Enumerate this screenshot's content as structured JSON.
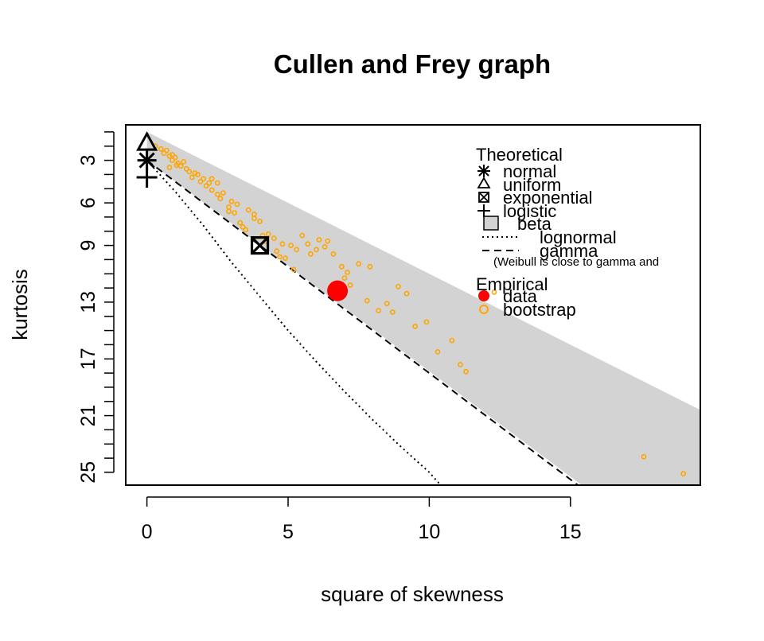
{
  "chart_data": {
    "type": "scatter",
    "title": "Cullen and Frey graph",
    "xlabel": "square of skewness",
    "ylabel": "kurtosis",
    "xlim": [
      -0.75,
      19.6
    ],
    "ylim": [
      25.9,
      0.5
    ],
    "y_reversed": true,
    "x_ticks": [
      "0",
      "5",
      "10",
      "15"
    ],
    "y_ticks": [
      "3",
      "6",
      "9",
      "13",
      "17",
      "21",
      "25"
    ],
    "legend": {
      "theoretical_title": "Theoretical",
      "empirical_title": "Empirical",
      "items": [
        "normal",
        "uniform",
        "exponential",
        "logistic",
        "beta",
        "lognormal",
        "gamma"
      ],
      "note": "(Weibull is close to gamma and",
      "empirical_items": [
        "data",
        "bootstrap"
      ]
    },
    "theoretical_points": {
      "normal": {
        "x": 0,
        "y": 3
      },
      "uniform": {
        "x": 0,
        "y": 1.8
      },
      "exponential": {
        "x": 4,
        "y": 9
      },
      "logistic": {
        "x": 0,
        "y": 4.2
      }
    },
    "beta_region": [
      [
        0,
        1
      ],
      [
        19.6,
        20.6
      ],
      [
        19.6,
        25.9
      ],
      [
        15.4,
        25.9
      ],
      [
        0,
        3
      ]
    ],
    "gamma_line": [
      [
        0,
        3
      ],
      [
        15.4,
        26.1
      ]
    ],
    "lognormal_line": [
      [
        0,
        3
      ],
      [
        1,
        5.2
      ],
      [
        2,
        7.6
      ],
      [
        3,
        10.2
      ],
      [
        4,
        12.6
      ],
      [
        5,
        15
      ],
      [
        6,
        17.2
      ],
      [
        7,
        19.3
      ],
      [
        8,
        21.3
      ],
      [
        9,
        23.2
      ],
      [
        10,
        25
      ],
      [
        10.4,
        25.9
      ]
    ],
    "data_point": {
      "x": 6.75,
      "y": 12.2
    },
    "bootstrap": [
      [
        0.3,
        2
      ],
      [
        0.5,
        2.2
      ],
      [
        0.6,
        2.5
      ],
      [
        0.7,
        2.3
      ],
      [
        0.8,
        2.7
      ],
      [
        0.9,
        3
      ],
      [
        1,
        2.8
      ],
      [
        1.1,
        3.2
      ],
      [
        1.2,
        3.4
      ],
      [
        0.8,
        3.5
      ],
      [
        1.3,
        3.1
      ],
      [
        1.4,
        3.6
      ],
      [
        1.5,
        3.8
      ],
      [
        1.6,
        4.2
      ],
      [
        1.8,
        4
      ],
      [
        1.9,
        4.5
      ],
      [
        2,
        4.3
      ],
      [
        2.1,
        4.8
      ],
      [
        0.9,
        2.6
      ],
      [
        1.05,
        3.35
      ],
      [
        1.7,
        3.9
      ],
      [
        2.2,
        4.6
      ],
      [
        2.3,
        5.1
      ],
      [
        2.5,
        5.4
      ],
      [
        2.7,
        5.3
      ],
      [
        3,
        5.9
      ],
      [
        3.2,
        6.1
      ],
      [
        3.6,
        6.5
      ],
      [
        3.8,
        7.1
      ],
      [
        4,
        7.3
      ],
      [
        4.3,
        8.2
      ],
      [
        4.5,
        8.5
      ],
      [
        4.8,
        8.9
      ],
      [
        5.1,
        9
      ],
      [
        5.3,
        9.3
      ],
      [
        2.6,
        5.7
      ],
      [
        2.9,
        6.6
      ],
      [
        3.3,
        7.4
      ],
      [
        3.5,
        7.9
      ],
      [
        4.1,
        8.3
      ],
      [
        2.3,
        4.3
      ],
      [
        2.5,
        4.6
      ],
      [
        2.9,
        6.3
      ],
      [
        3.1,
        6.7
      ],
      [
        3.8,
        6.8
      ],
      [
        3.4,
        7.7
      ],
      [
        4.2,
        8.7
      ],
      [
        4.6,
        9.4
      ],
      [
        4.9,
        9.9
      ],
      [
        5.2,
        10.7
      ],
      [
        5.5,
        8.3
      ],
      [
        5.7,
        8.9
      ],
      [
        6,
        9.3
      ],
      [
        6.1,
        8.6
      ],
      [
        6.4,
        8.7
      ],
      [
        6.6,
        9.6
      ],
      [
        6.9,
        10.5
      ],
      [
        7.1,
        10.9
      ],
      [
        7.2,
        11.8
      ],
      [
        7.5,
        10.3
      ],
      [
        7.9,
        10.5
      ],
      [
        7.8,
        12.9
      ],
      [
        8.2,
        13.6
      ],
      [
        8.5,
        13.1
      ],
      [
        8.7,
        13.7
      ],
      [
        8.9,
        11.9
      ],
      [
        9.2,
        12.4
      ],
      [
        9.5,
        14.7
      ],
      [
        9.9,
        14.4
      ],
      [
        10.3,
        16.5
      ],
      [
        10.8,
        15.7
      ],
      [
        11.1,
        17.4
      ],
      [
        11.3,
        17.9
      ],
      [
        12.3,
        12.3
      ],
      [
        17.6,
        23.9
      ],
      [
        19,
        25.1
      ],
      [
        4.7,
        9.8
      ],
      [
        5.8,
        9.6
      ],
      [
        6.3,
        9.1
      ],
      [
        7,
        11.3
      ]
    ],
    "colors": {
      "data": "#ff0000",
      "bootstrap": "#ffa500",
      "beta_region": "#d3d3d3",
      "frame": "#000000"
    }
  }
}
